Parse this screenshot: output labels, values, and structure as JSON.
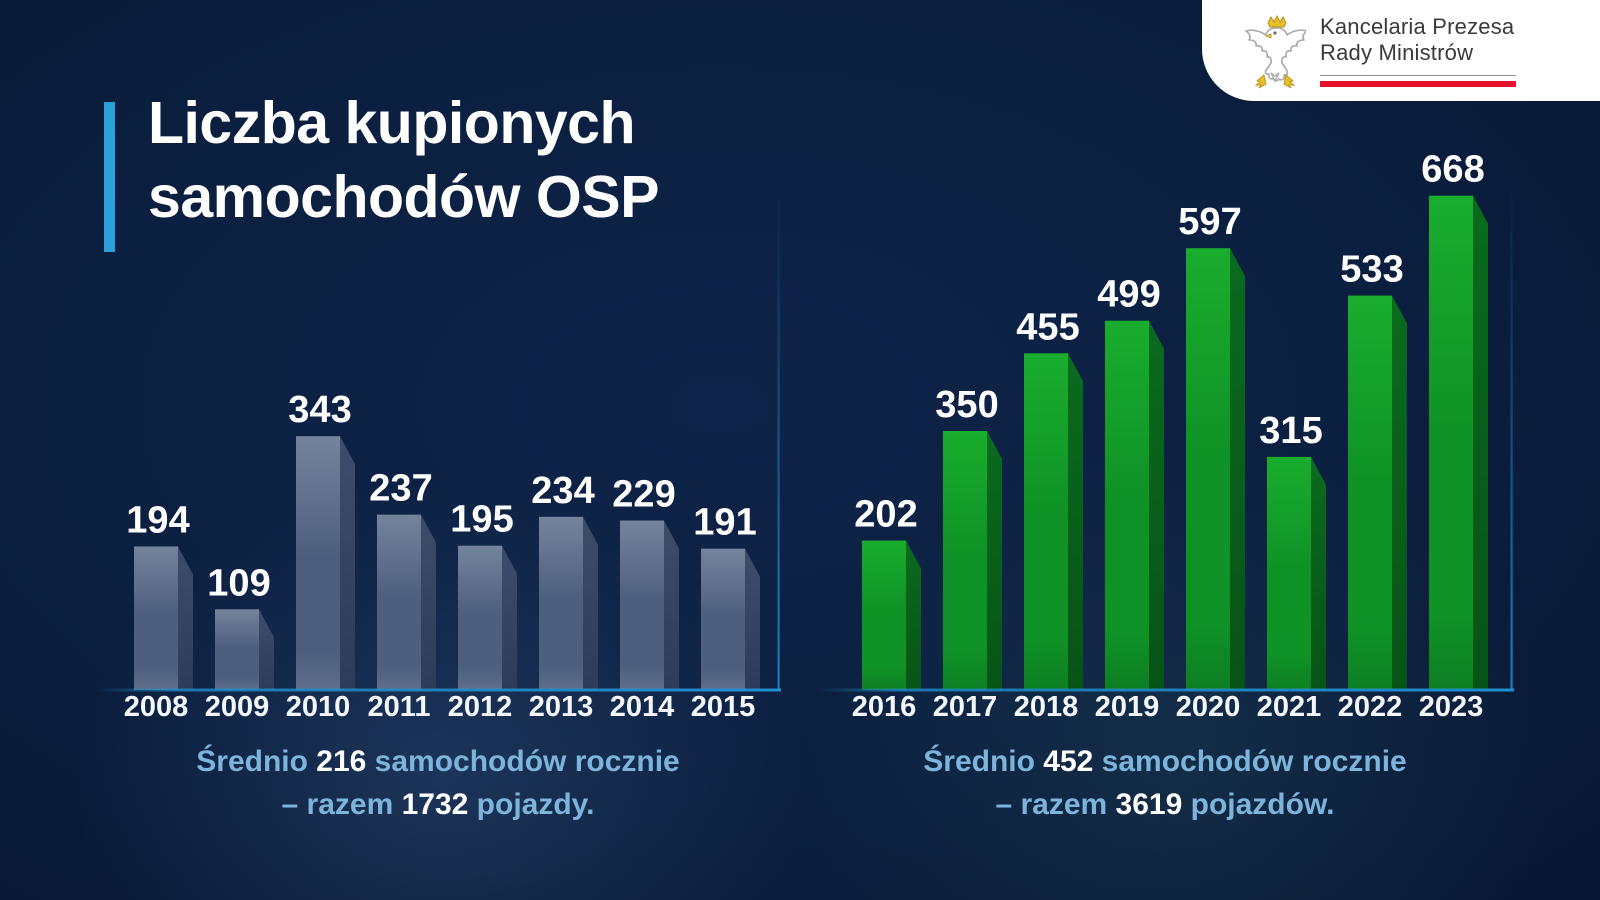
{
  "page": {
    "background_color": "#0b1f40",
    "accent_color": "#2b9fd9"
  },
  "logo": {
    "org_line1": "Kancelaria Prezesa",
    "org_line2": "Rady Ministrów",
    "eagle_icon": "polish-white-eagle-with-gold-crown",
    "red_rule_color": "#e8112d"
  },
  "title": {
    "line1": "Liczba kupionych",
    "line2": "samochodów OSP"
  },
  "chart_data": [
    {
      "type": "bar",
      "categories": [
        "2008",
        "2009",
        "2010",
        "2011",
        "2012",
        "2013",
        "2014",
        "2015"
      ],
      "values": [
        194,
        109,
        343,
        237,
        195,
        234,
        229,
        191
      ],
      "grid": false,
      "value_labels": true,
      "style": "3d-slate-blue",
      "colors": {
        "face_top": "#75849d",
        "face_mid": "#4d5e7e",
        "face_bottom": "#5f6f8c",
        "side_top": "#3c4c6a",
        "side_bottom": "#2c3c5a",
        "axis": "#1f8ecf",
        "label": "#ffffff"
      },
      "caption": {
        "pre1": "Średnio ",
        "num1": "216",
        "post1": " samochodów rocznie",
        "pre2": "– razem ",
        "num2": "1732",
        "post2": " pojazdy.",
        "text_color": "#7cb4dc"
      }
    },
    {
      "type": "bar",
      "categories": [
        "2016",
        "2017",
        "2018",
        "2019",
        "2020",
        "2021",
        "2022",
        "2023"
      ],
      "values": [
        202,
        350,
        455,
        499,
        597,
        315,
        533,
        668
      ],
      "grid": false,
      "value_labels": true,
      "style": "3d-green",
      "colors": {
        "face_top": "#19ad2e",
        "face_mid": "#0f9226",
        "face_bottom": "#0d7e23",
        "side_top": "#0a6b1e",
        "side_bottom": "#075317",
        "axis": "#1f8ecf",
        "label": "#ffffff"
      },
      "caption": {
        "pre1": "Średnio ",
        "num1": "452",
        "post1": " samochodów rocznie",
        "pre2": "– razem ",
        "num2": "3619",
        "post2": " pojazdów.",
        "text_color": "#7cb4dc"
      }
    }
  ]
}
